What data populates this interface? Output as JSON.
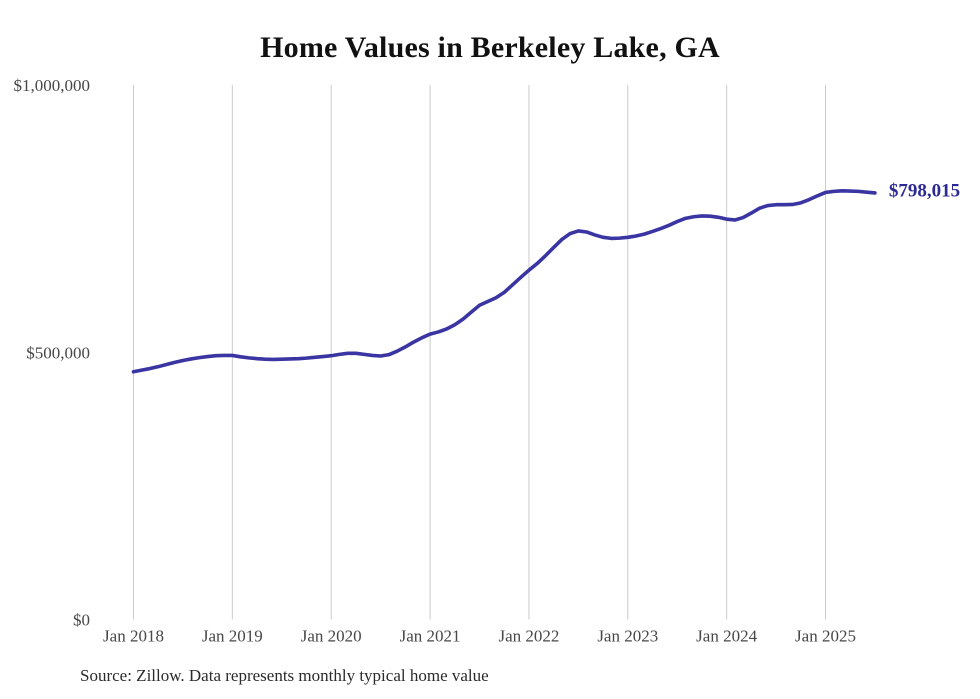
{
  "title": "Home Values in Berkeley Lake, GA",
  "source_note": "Source: Zillow. Data represents monthly typical home value",
  "end_label": "$798,015",
  "colors": {
    "line": "#3a35a2",
    "end_label": "#2c2994",
    "grid": "#cccccc",
    "axis_text": "#474747",
    "title": "#111111",
    "source": "#2b2b2b",
    "background": "#ffffff"
  },
  "chart_data": {
    "type": "line",
    "title": "Home Values in Berkeley Lake, GA",
    "xlabel": "",
    "ylabel": "",
    "ylim": [
      0,
      1000000
    ],
    "y_ticks": [
      0,
      500000,
      1000000
    ],
    "y_tick_labels": [
      "$0",
      "$500,000",
      "$1,000,000"
    ],
    "x_tick_labels": [
      "Jan 2018",
      "Jan 2019",
      "Jan 2020",
      "Jan 2021",
      "Jan 2022",
      "Jan 2023",
      "Jan 2024",
      "Jan 2025"
    ],
    "x_start_month": "2018-01",
    "x_end_month": "2025-07",
    "cadence": "monthly",
    "grid": "vertical-only",
    "legend": "none",
    "final_value": 798015,
    "series": [
      {
        "name": "Typical home value",
        "monthly_values_by_year": {
          "2018": [
            463500,
            466500,
            469500,
            473000,
            477000,
            481000,
            484500,
            487500,
            490000,
            492000,
            493500,
            494000
          ],
          "2019": [
            494000,
            491500,
            489500,
            488000,
            487000,
            486500,
            487000,
            487500,
            488000,
            489000,
            490500,
            492000
          ],
          "2020": [
            493500,
            496000,
            498000,
            498000,
            496000,
            494000,
            493000,
            495500,
            502000,
            510000,
            519000,
            527000
          ],
          "2021": [
            534000,
            538000,
            543500,
            551500,
            562000,
            575000,
            588000,
            595000,
            602000,
            612000,
            626000,
            640000
          ],
          "2022": [
            653500,
            666000,
            680500,
            696000,
            711000,
            722000,
            727000,
            725000,
            719500,
            715000,
            713000,
            713500
          ],
          "2023": [
            715000,
            717500,
            721000,
            726000,
            731500,
            737500,
            744500,
            750500,
            753500,
            755000,
            754500,
            752500
          ],
          "2024": [
            749000,
            747500,
            752000,
            760500,
            769500,
            774500,
            776000,
            776000,
            776500,
            779500,
            785500,
            792500
          ],
          "2025": [
            799000,
            801000,
            802000,
            801500,
            801000,
            799500,
            798015
          ]
        }
      }
    ]
  }
}
